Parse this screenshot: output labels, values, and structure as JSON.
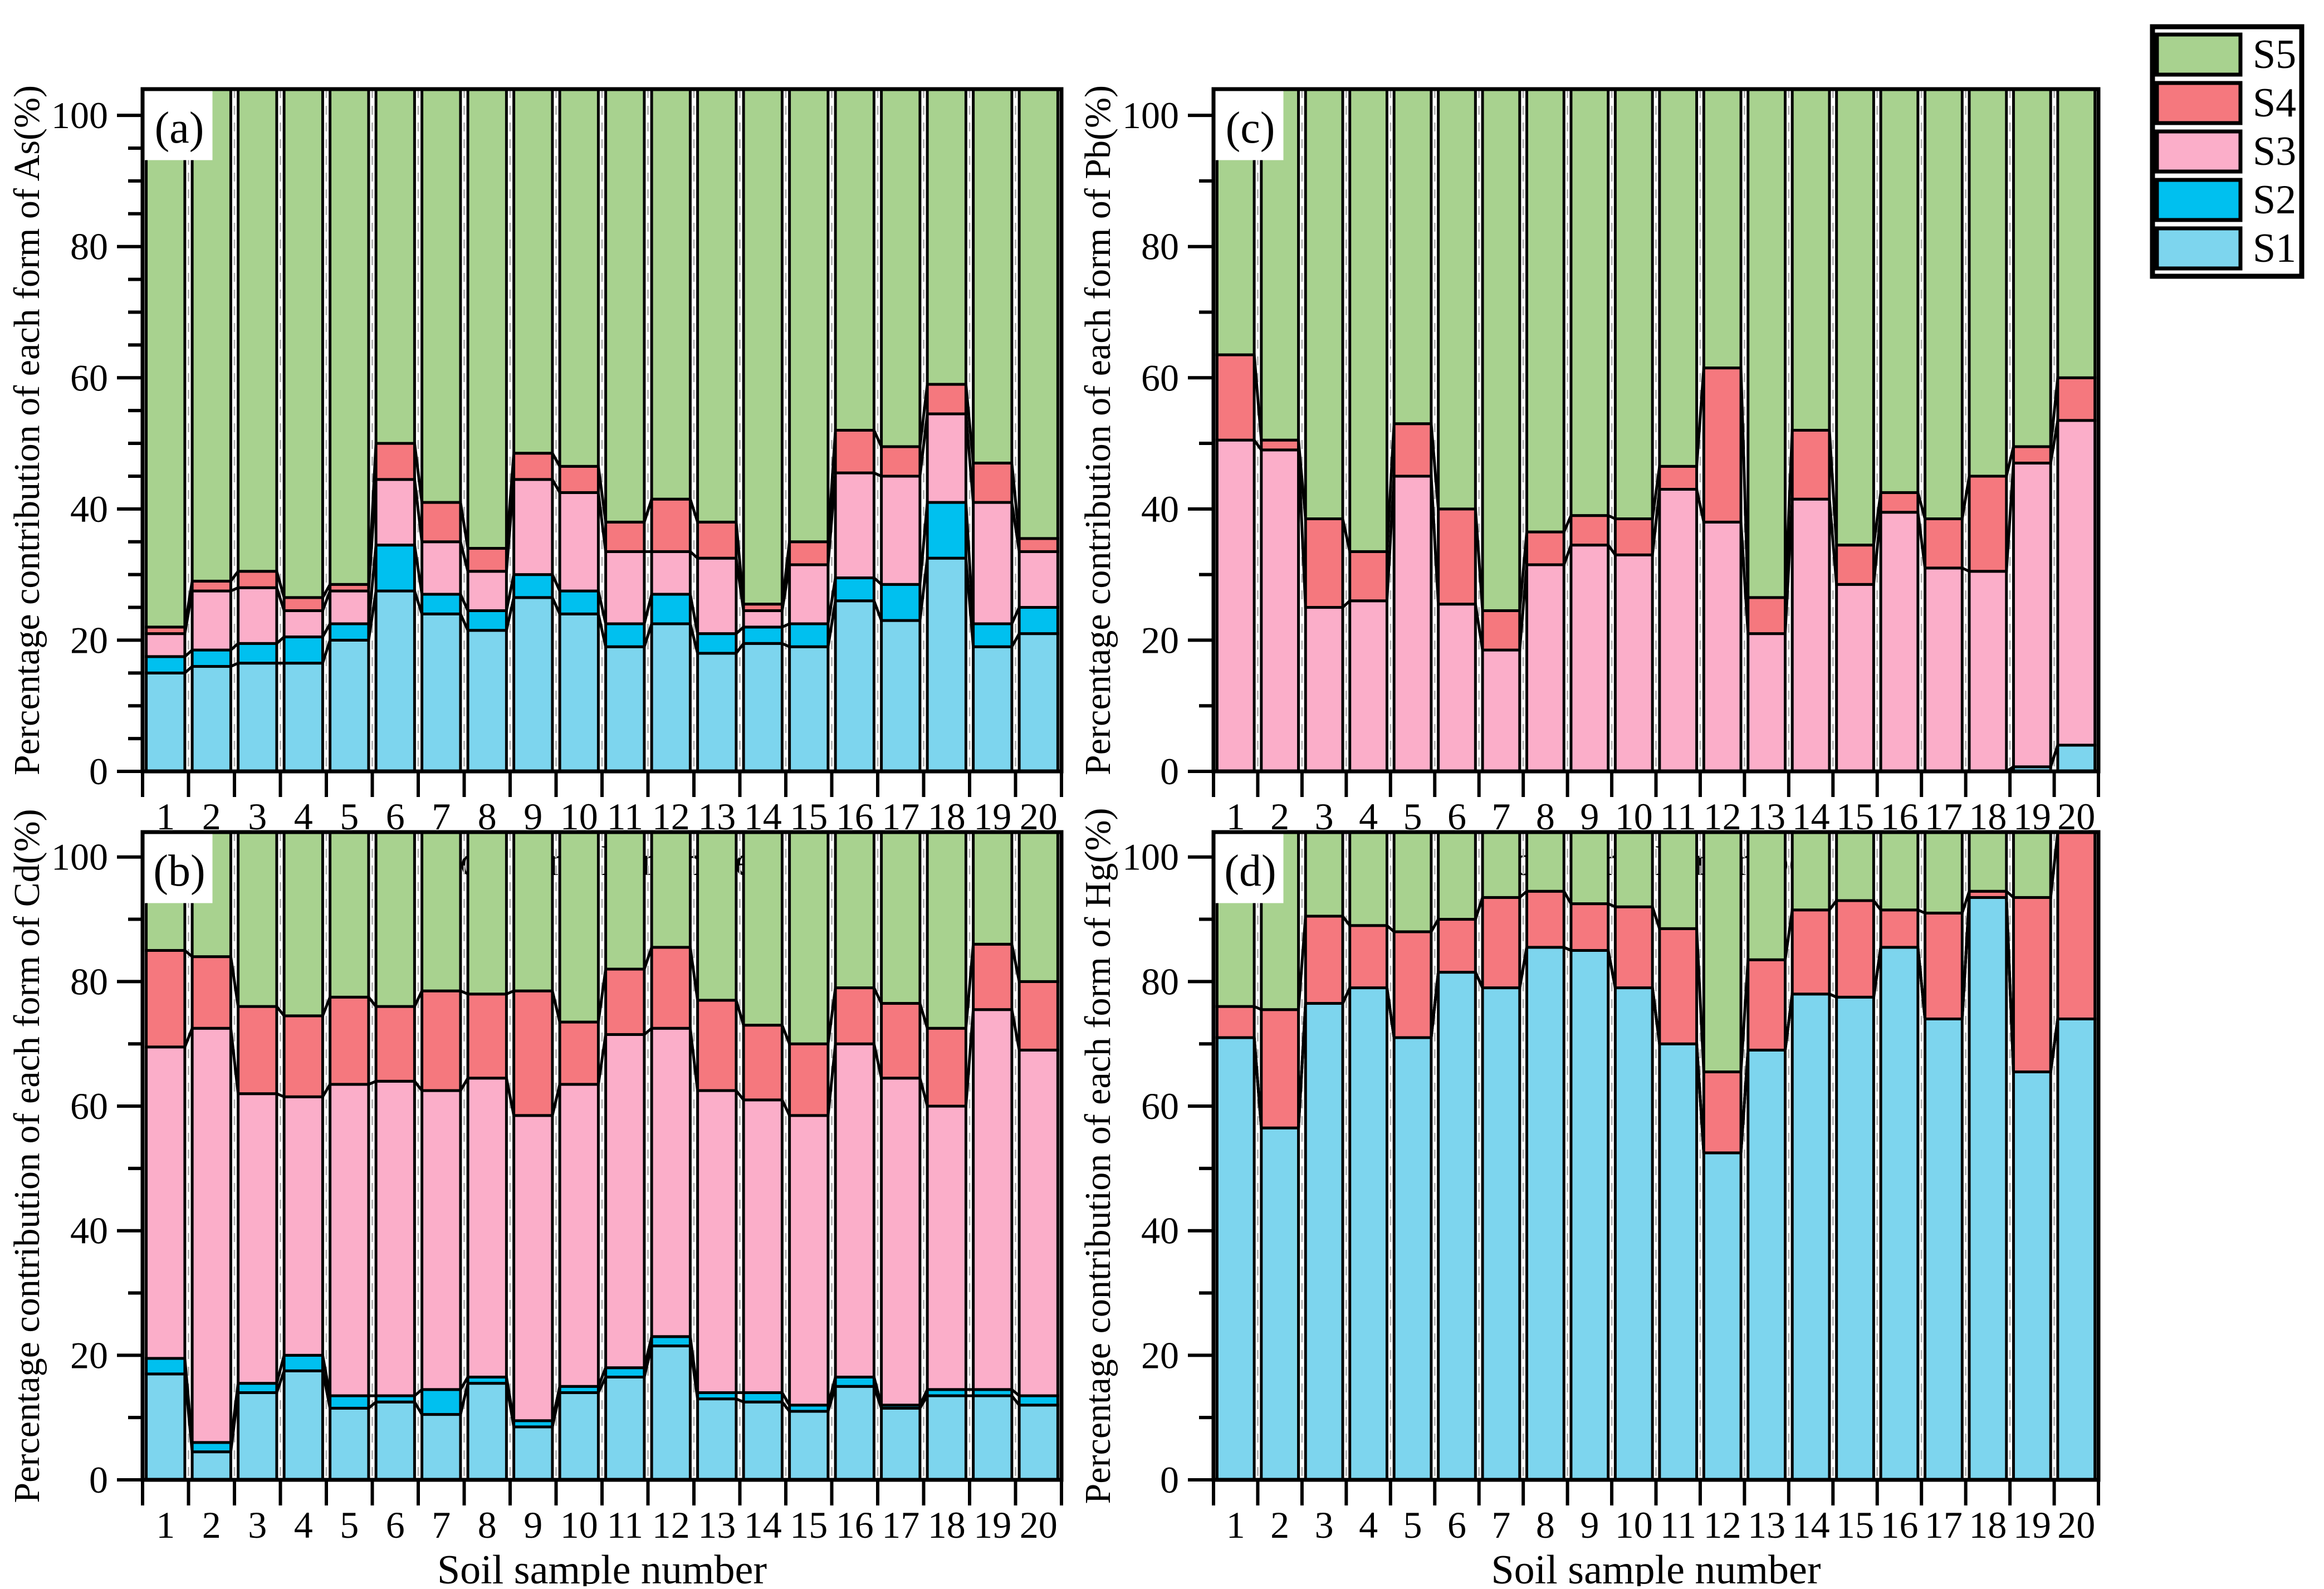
{
  "figure": {
    "background": "#ffffff",
    "x_axis_title": "Soil sample number",
    "y_tick_labels": [
      "0",
      "20",
      "40",
      "60",
      "80",
      "100"
    ],
    "categories": [
      "1",
      "2",
      "3",
      "4",
      "5",
      "6",
      "7",
      "8",
      "9",
      "10",
      "11",
      "12",
      "13",
      "14",
      "15",
      "16",
      "17",
      "18",
      "19",
      "20"
    ]
  },
  "colors": {
    "S1": "#7dd5ee",
    "S2": "#00c0ef",
    "S3": "#fbaec9",
    "S4": "#f5787e",
    "S5": "#a8d28f",
    "grid": "#b4b4b4",
    "frame": "#000000"
  },
  "legend": {
    "entries": [
      {
        "label": "S5",
        "color_key": "S5"
      },
      {
        "label": "S4",
        "color_key": "S4"
      },
      {
        "label": "S3",
        "color_key": "S3"
      },
      {
        "label": "S2",
        "color_key": "S2"
      },
      {
        "label": "S1",
        "color_key": "S1"
      }
    ]
  },
  "chart_data": [
    {
      "type": "bar",
      "stacked": true,
      "panel_label": "(a)",
      "ylabel": "Percentage contribution of each form of As(%)",
      "xlabel": "Soil sample number",
      "ylim": [
        0,
        100
      ],
      "y_major": 20,
      "y_minor": 5,
      "grid": "vertical-dashed",
      "legend_position": "top-right-outside",
      "categories": [
        "1",
        "2",
        "3",
        "4",
        "5",
        "6",
        "7",
        "8",
        "9",
        "10",
        "11",
        "12",
        "13",
        "14",
        "15",
        "16",
        "17",
        "18",
        "19",
        "20"
      ],
      "series": [
        {
          "name": "S1",
          "values": [
            15,
            16,
            16.5,
            16.5,
            20,
            27.5,
            24,
            21.5,
            26.5,
            24,
            19,
            22.5,
            18,
            19.5,
            19,
            26,
            23,
            32.5,
            19,
            21
          ]
        },
        {
          "name": "S2",
          "values": [
            2.5,
            2.5,
            3,
            4,
            2.5,
            7,
            3,
            3,
            3.5,
            3.5,
            3.5,
            4.5,
            3,
            2.5,
            3.5,
            3.5,
            5.5,
            8.5,
            3.5,
            4
          ]
        },
        {
          "name": "S3",
          "values": [
            3.5,
            9,
            8.5,
            4,
            5,
            10,
            8,
            6,
            14.5,
            15,
            11,
            6.5,
            11.5,
            2.5,
            9,
            16,
            16.5,
            13.5,
            18.5,
            8.5
          ]
        },
        {
          "name": "S4",
          "values": [
            1,
            1.5,
            2.5,
            2,
            1,
            5.5,
            6,
            3.5,
            4,
            4,
            4.5,
            8,
            5.5,
            1,
            3.5,
            6.5,
            4.5,
            4.5,
            6,
            2
          ]
        },
        {
          "name": "S5",
          "values": [
            78,
            71,
            69.5,
            73.5,
            71.5,
            50,
            59,
            66,
            51.5,
            53.5,
            62,
            58.5,
            62,
            74.5,
            65,
            48,
            50.5,
            41,
            53,
            64.5
          ]
        }
      ]
    },
    {
      "type": "bar",
      "stacked": true,
      "panel_label": "(b)",
      "ylabel": "Percentage contribution of each form of Cd(%)",
      "xlabel": "Soil sample number",
      "ylim": [
        0,
        100
      ],
      "y_major": 20,
      "y_minor": 10,
      "grid": "vertical-dashed",
      "categories": [
        "1",
        "2",
        "3",
        "4",
        "5",
        "6",
        "7",
        "8",
        "9",
        "10",
        "11",
        "12",
        "13",
        "14",
        "15",
        "16",
        "17",
        "18",
        "19",
        "20"
      ],
      "series": [
        {
          "name": "S1",
          "values": [
            17,
            4.5,
            14,
            17.5,
            11.5,
            12.5,
            10.5,
            15.5,
            8.5,
            14,
            16.5,
            21.5,
            13,
            12.5,
            11,
            15,
            11.5,
            13.5,
            13.5,
            12
          ]
        },
        {
          "name": "S2",
          "values": [
            2.5,
            1.5,
            1.5,
            2.5,
            2,
            1,
            4,
            1,
            1,
            1,
            1.5,
            1.5,
            1,
            1.5,
            1,
            1.5,
            0.5,
            1,
            1,
            1.5
          ]
        },
        {
          "name": "S3",
          "values": [
            50,
            66.5,
            46.5,
            41.5,
            50,
            50.5,
            48,
            48,
            49,
            48.5,
            53.5,
            49.5,
            48.5,
            47,
            46.5,
            53.5,
            52.5,
            45.5,
            61,
            55.5
          ]
        },
        {
          "name": "S4",
          "values": [
            15.5,
            11.5,
            14,
            13,
            14,
            12,
            16,
            13.5,
            20,
            10,
            10.5,
            13,
            14.5,
            12,
            11.5,
            9,
            12,
            12.5,
            10.5,
            11
          ]
        },
        {
          "name": "S5",
          "values": [
            15,
            16,
            24,
            25.5,
            22.5,
            24,
            21.5,
            22,
            21.5,
            26.5,
            18,
            14.5,
            23,
            27,
            30,
            21,
            23.5,
            27.5,
            14,
            20
          ]
        }
      ]
    },
    {
      "type": "bar",
      "stacked": true,
      "panel_label": "(c)",
      "ylabel": "Percentage contribution of each form of Pb(%)",
      "xlabel": "Soil sample number",
      "ylim": [
        0,
        100
      ],
      "y_major": 20,
      "y_minor": 10,
      "grid": "vertical-dashed",
      "categories": [
        "1",
        "2",
        "3",
        "4",
        "5",
        "6",
        "7",
        "8",
        "9",
        "10",
        "11",
        "12",
        "13",
        "14",
        "15",
        "16",
        "17",
        "18",
        "19",
        "20"
      ],
      "series": [
        {
          "name": "S1",
          "values": [
            0,
            0,
            0,
            0,
            0,
            0,
            0,
            0,
            0,
            0,
            0,
            0,
            0,
            0,
            0,
            0,
            0,
            0,
            0.7,
            4
          ]
        },
        {
          "name": "S2",
          "values": [
            0,
            0,
            0,
            0,
            0,
            0,
            0,
            0,
            0,
            0,
            0,
            0,
            0,
            0,
            0,
            0,
            0,
            0,
            0,
            0
          ]
        },
        {
          "name": "S3",
          "values": [
            50.5,
            49,
            25,
            26,
            45,
            25.5,
            18.5,
            31.5,
            34.5,
            33,
            43,
            38,
            21,
            41.5,
            28.5,
            39.5,
            31,
            30.5,
            46.3,
            49.5
          ]
        },
        {
          "name": "S4",
          "values": [
            13,
            1.5,
            13.5,
            7.5,
            8,
            14.5,
            6,
            5,
            4.5,
            5.5,
            3.5,
            23.5,
            5.5,
            10.5,
            6,
            3,
            7.5,
            14.5,
            2.5,
            6.5
          ]
        },
        {
          "name": "S5",
          "values": [
            36.5,
            49.5,
            61.5,
            66.5,
            47,
            60,
            75.5,
            63.5,
            61,
            61.5,
            53.5,
            38.5,
            73.5,
            48,
            65.5,
            57.5,
            61.5,
            55,
            50.5,
            40
          ]
        }
      ]
    },
    {
      "type": "bar",
      "stacked": true,
      "panel_label": "(d)",
      "ylabel": "Percentage contribution of each form of Hg(%)",
      "xlabel": "Soil sample number",
      "ylim": [
        0,
        100
      ],
      "y_major": 20,
      "y_minor": 10,
      "grid": "vertical-dashed",
      "categories": [
        "1",
        "2",
        "3",
        "4",
        "5",
        "6",
        "7",
        "8",
        "9",
        "10",
        "11",
        "12",
        "13",
        "14",
        "15",
        "16",
        "17",
        "18",
        "19",
        "20"
      ],
      "series": [
        {
          "name": "S1",
          "values": [
            71,
            56.5,
            76.5,
            79,
            71,
            81.5,
            79,
            85.5,
            85,
            79,
            70,
            52.5,
            69,
            78,
            77.5,
            85.5,
            74,
            93.5,
            65.5,
            74
          ]
        },
        {
          "name": "S2",
          "values": [
            0,
            0,
            0,
            0,
            0,
            0,
            0,
            0,
            0,
            0,
            0,
            0,
            0,
            0,
            0,
            0,
            0,
            0,
            0,
            0
          ]
        },
        {
          "name": "S3",
          "values": [
            0,
            0,
            0,
            0,
            0,
            0,
            0,
            0,
            0,
            0,
            0,
            0,
            0,
            0,
            0,
            0,
            0,
            0,
            0,
            0
          ]
        },
        {
          "name": "S4",
          "values": [
            5,
            19,
            14,
            10,
            17,
            8.5,
            14.5,
            9,
            7.5,
            13,
            18.5,
            13,
            14.5,
            13.5,
            15.5,
            6,
            17,
            1,
            28,
            26
          ]
        },
        {
          "name": "S5",
          "values": [
            24,
            24.5,
            9.5,
            11,
            12,
            10,
            6.5,
            5.5,
            7.5,
            8,
            11.5,
            34.5,
            16.5,
            8.5,
            7,
            8.5,
            9,
            5.5,
            6.5,
            0
          ]
        }
      ]
    }
  ]
}
